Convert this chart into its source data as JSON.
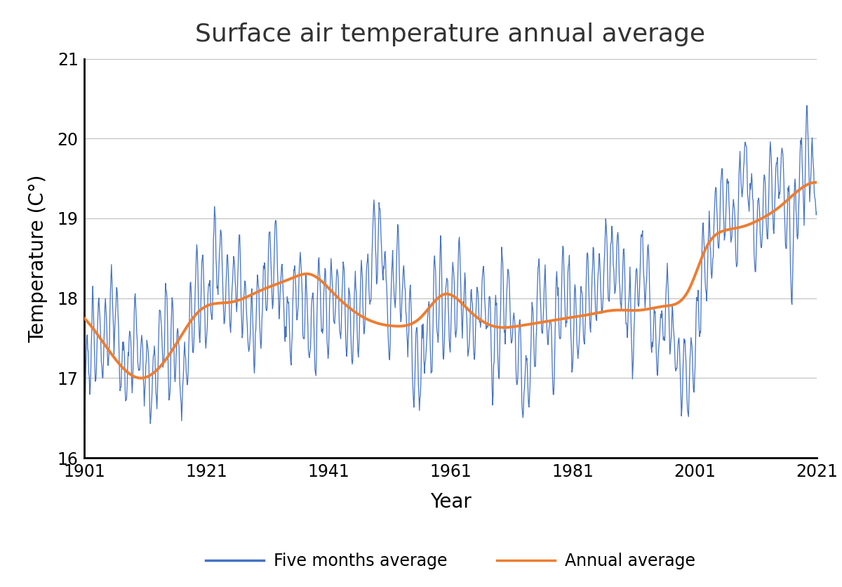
{
  "title": "Surface air temperature annual average",
  "xlabel": "Year",
  "ylabel": "Temperature (C°)",
  "xlim": [
    1901,
    2021
  ],
  "ylim": [
    16,
    21
  ],
  "xticks": [
    1901,
    1921,
    1941,
    1961,
    1981,
    2001,
    2021
  ],
  "yticks": [
    16,
    17,
    18,
    19,
    20,
    21
  ],
  "line1_color": "#4472C4",
  "line2_color": "#ED7D31",
  "line1_label": "Five months average",
  "line2_label": "Annual average",
  "title_fontsize": 26,
  "axis_label_fontsize": 20,
  "tick_fontsize": 17,
  "legend_fontsize": 17,
  "background_color": "#ffffff",
  "grid_color": "#bfbfbf"
}
